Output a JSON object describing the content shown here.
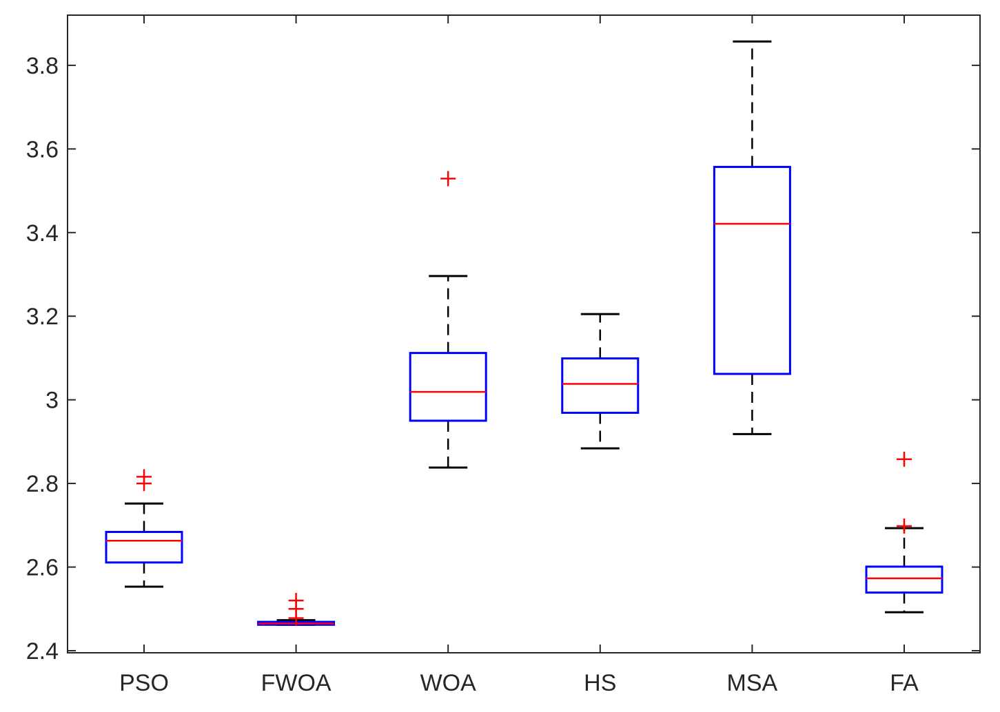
{
  "chart_data": {
    "type": "boxplot",
    "title": "",
    "xlabel": "",
    "ylabel": "",
    "ylim": [
      2.395,
      3.92
    ],
    "yticks": [
      2.4,
      2.6,
      2.8,
      3.0,
      3.2,
      3.4,
      3.6,
      3.8
    ],
    "ytick_labels": [
      "2.4",
      "2.6",
      "2.8",
      "3",
      "3.2",
      "3.4",
      "3.6",
      "3.8"
    ],
    "categories": [
      "PSO",
      "FWOA",
      "WOA",
      "HS",
      "MSA",
      "FA"
    ],
    "boxes": [
      {
        "name": "PSO",
        "whisker_low": 2.553,
        "q1": 2.611,
        "median": 2.663,
        "q3": 2.684,
        "whisker_high": 2.752,
        "outliers": [
          2.8,
          2.816
        ]
      },
      {
        "name": "FWOA",
        "whisker_low": 2.462,
        "q1": 2.462,
        "median": 2.465,
        "q3": 2.469,
        "whisker_high": 2.473,
        "outliers": [
          2.478,
          2.5,
          2.52
        ]
      },
      {
        "name": "WOA",
        "whisker_low": 2.838,
        "q1": 2.95,
        "median": 3.019,
        "q3": 3.112,
        "whisker_high": 3.296,
        "outliers": [
          3.529
        ]
      },
      {
        "name": "HS",
        "whisker_low": 2.884,
        "q1": 2.969,
        "median": 3.038,
        "q3": 3.099,
        "whisker_high": 3.205,
        "outliers": []
      },
      {
        "name": "MSA",
        "whisker_low": 2.918,
        "q1": 3.062,
        "median": 3.421,
        "q3": 3.557,
        "whisker_high": 3.857,
        "outliers": []
      },
      {
        "name": "FA",
        "whisker_low": 2.492,
        "q1": 2.539,
        "median": 2.573,
        "q3": 2.601,
        "whisker_high": 2.693,
        "outliers": [
          2.698,
          2.858
        ]
      }
    ],
    "colors": {
      "box": "#0000ff",
      "median": "#ff0000",
      "whisker": "#000000",
      "outlier": "#ff0000",
      "axis": "#262626"
    }
  }
}
